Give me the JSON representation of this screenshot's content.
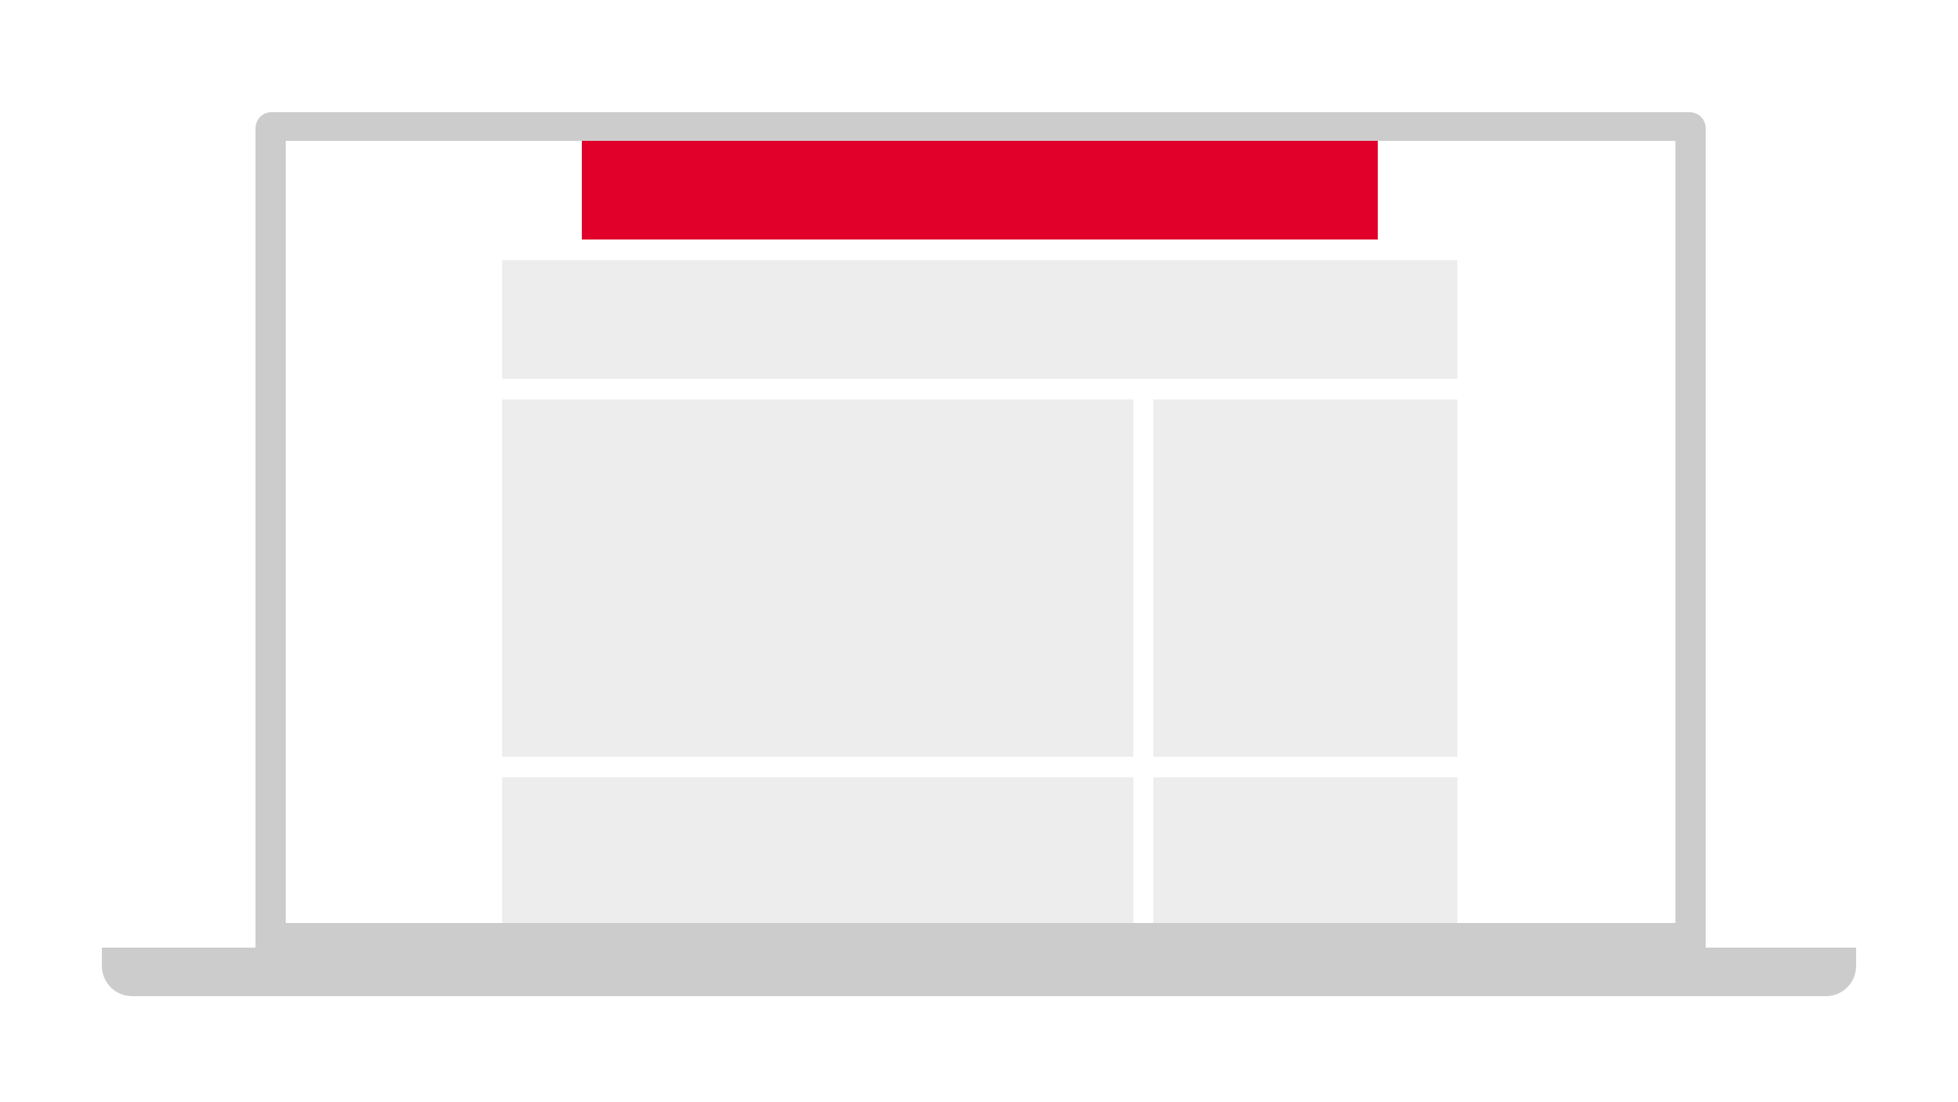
{
  "colors": {
    "device_frame": "#cccccc",
    "screen_background": "#ffffff",
    "header_accent": "#e0002a",
    "content_placeholder": "#ededed",
    "page_background": "#ffffff"
  },
  "device": {
    "type": "laptop",
    "screen": {
      "header": {
        "kind": "red-header-bar"
      },
      "placeholders": [
        {
          "name": "banner-block"
        },
        {
          "name": "main-content-block"
        },
        {
          "name": "sidebar-block"
        },
        {
          "name": "main-content-block-secondary"
        },
        {
          "name": "sidebar-block-secondary"
        }
      ]
    }
  }
}
